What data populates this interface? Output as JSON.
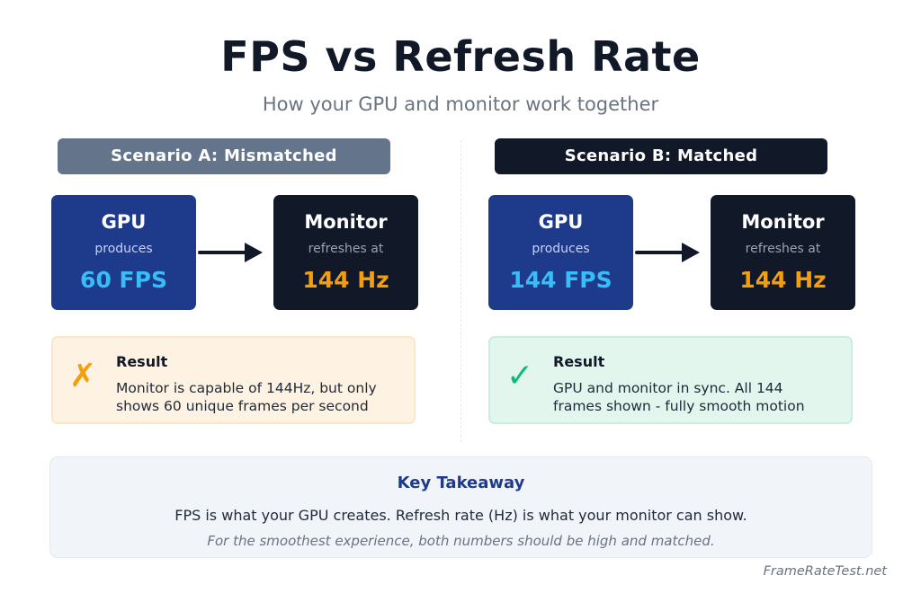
{
  "header": {
    "title": "FPS vs Refresh Rate",
    "subtitle": "How your GPU and monitor work together"
  },
  "scenario_a": {
    "heading": "Scenario A: Mismatched",
    "gpu": {
      "title": "GPU",
      "caption": "produces",
      "value": "60 FPS"
    },
    "monitor": {
      "title": "Monitor",
      "caption": "refreshes at",
      "value": "144 Hz"
    },
    "result": {
      "icon": "cross-icon",
      "symbol": "✗",
      "title": "Result",
      "line1": "Monitor is capable of 144Hz, but only",
      "line2": "shows 60 unique frames per second"
    }
  },
  "scenario_b": {
    "heading": "Scenario B: Matched",
    "gpu": {
      "title": "GPU",
      "caption": "produces",
      "value": "144 FPS"
    },
    "monitor": {
      "title": "Monitor",
      "caption": "refreshes at",
      "value": "144 Hz"
    },
    "result": {
      "icon": "check-icon",
      "symbol": "✓",
      "title": "Result",
      "line1": "GPU and monitor in sync. All 144",
      "line2": "frames shown - fully smooth motion"
    }
  },
  "takeaway": {
    "title": "Key Takeaway",
    "text": "FPS is what your GPU creates. Refresh rate (Hz) is what your monitor can show.",
    "note": "For the smoothest experience, both numbers should be high and matched."
  },
  "footer": {
    "brand": "FrameRateTest.net"
  },
  "colors": {
    "gpu_box": "#1e3a8a",
    "monitor_box": "#111827",
    "fps_value": "#38bdf8",
    "hz_value": "#f59e0b",
    "mismatch_header": "#64748b",
    "match_header": "#111827",
    "warn_bg": "#fef3e2",
    "ok_bg": "#e3f6ee"
  }
}
